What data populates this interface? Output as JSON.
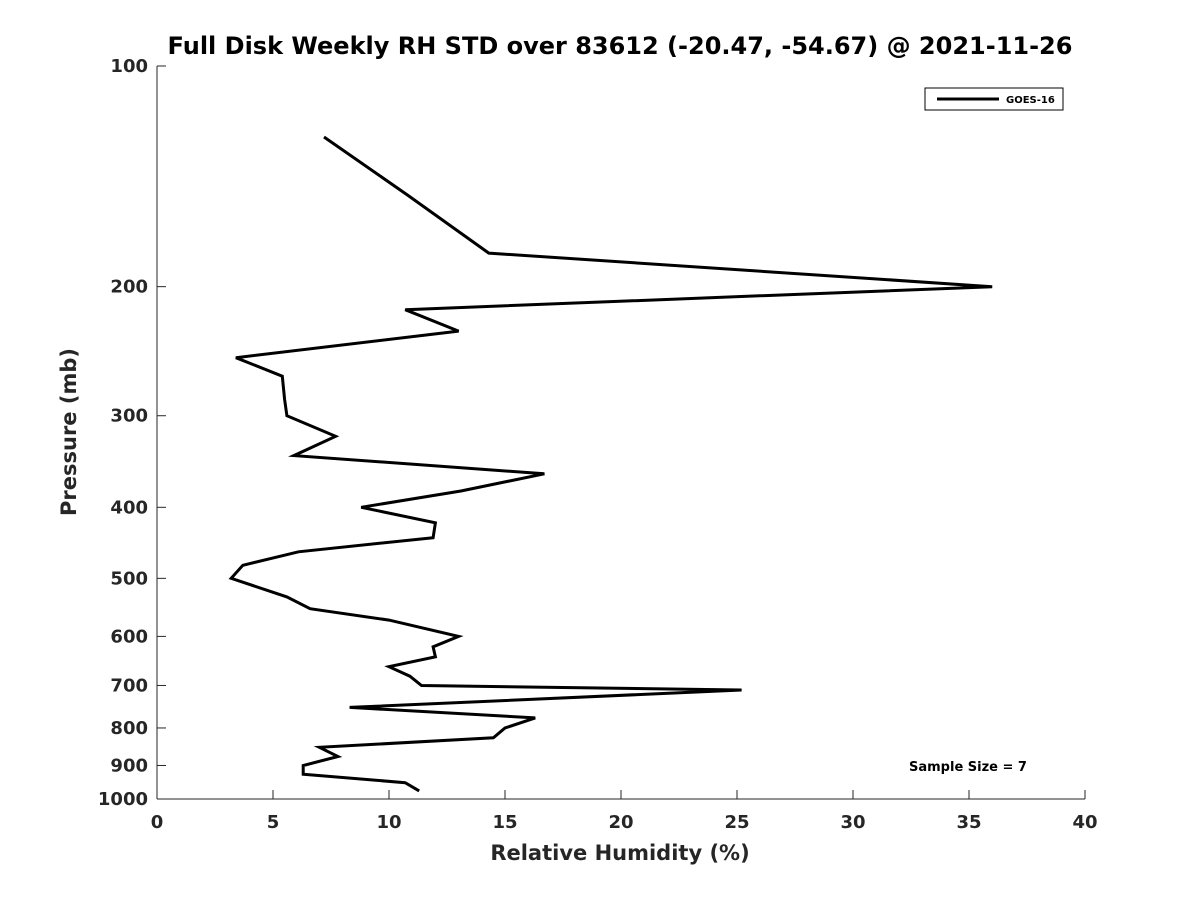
{
  "chart_data": {
    "type": "line",
    "title": "Full Disk Weekly RH STD over 83612 (-20.47, -54.67) @ 2021-11-26",
    "xlabel": "Relative Humidity (%)",
    "ylabel": "Pressure (mb)",
    "xlim": [
      0,
      40
    ],
    "ylim": [
      100,
      1000
    ],
    "y_scale": "log",
    "y_reversed": true,
    "x_ticks": [
      0,
      5,
      10,
      15,
      20,
      25,
      30,
      35,
      40
    ],
    "y_ticks": [
      100,
      200,
      300,
      400,
      500,
      600,
      700,
      800,
      900,
      1000
    ],
    "legend_position": "top-right",
    "annotation": "Sample Size = 7",
    "series": [
      {
        "name": "GOES-16",
        "color": "#000000",
        "points": [
          {
            "p": 125,
            "rh": 7.2
          },
          {
            "p": 150,
            "rh": 10.8
          },
          {
            "p": 180,
            "rh": 14.3
          },
          {
            "p": 200,
            "rh": 36.0
          },
          {
            "p": 215,
            "rh": 10.7
          },
          {
            "p": 230,
            "rh": 13.0
          },
          {
            "p": 250,
            "rh": 3.4
          },
          {
            "p": 265,
            "rh": 5.4
          },
          {
            "p": 285,
            "rh": 5.5
          },
          {
            "p": 300,
            "rh": 5.6
          },
          {
            "p": 320,
            "rh": 7.7
          },
          {
            "p": 340,
            "rh": 5.9
          },
          {
            "p": 360,
            "rh": 16.7
          },
          {
            "p": 380,
            "rh": 13.1
          },
          {
            "p": 400,
            "rh": 8.8
          },
          {
            "p": 420,
            "rh": 12.0
          },
          {
            "p": 440,
            "rh": 11.9
          },
          {
            "p": 460,
            "rh": 6.1
          },
          {
            "p": 480,
            "rh": 3.7
          },
          {
            "p": 500,
            "rh": 3.2
          },
          {
            "p": 530,
            "rh": 5.6
          },
          {
            "p": 550,
            "rh": 6.6
          },
          {
            "p": 570,
            "rh": 10.0
          },
          {
            "p": 600,
            "rh": 13.0
          },
          {
            "p": 620,
            "rh": 11.9
          },
          {
            "p": 640,
            "rh": 12.0
          },
          {
            "p": 660,
            "rh": 10.0
          },
          {
            "p": 680,
            "rh": 10.9
          },
          {
            "p": 700,
            "rh": 11.4
          },
          {
            "p": 710,
            "rh": 25.2
          },
          {
            "p": 750,
            "rh": 8.3
          },
          {
            "p": 775,
            "rh": 16.3
          },
          {
            "p": 800,
            "rh": 15.0
          },
          {
            "p": 825,
            "rh": 14.5
          },
          {
            "p": 850,
            "rh": 7.0
          },
          {
            "p": 875,
            "rh": 7.8
          },
          {
            "p": 900,
            "rh": 6.3
          },
          {
            "p": 925,
            "rh": 6.3
          },
          {
            "p": 950,
            "rh": 10.7
          },
          {
            "p": 975,
            "rh": 11.3
          }
        ]
      }
    ]
  }
}
